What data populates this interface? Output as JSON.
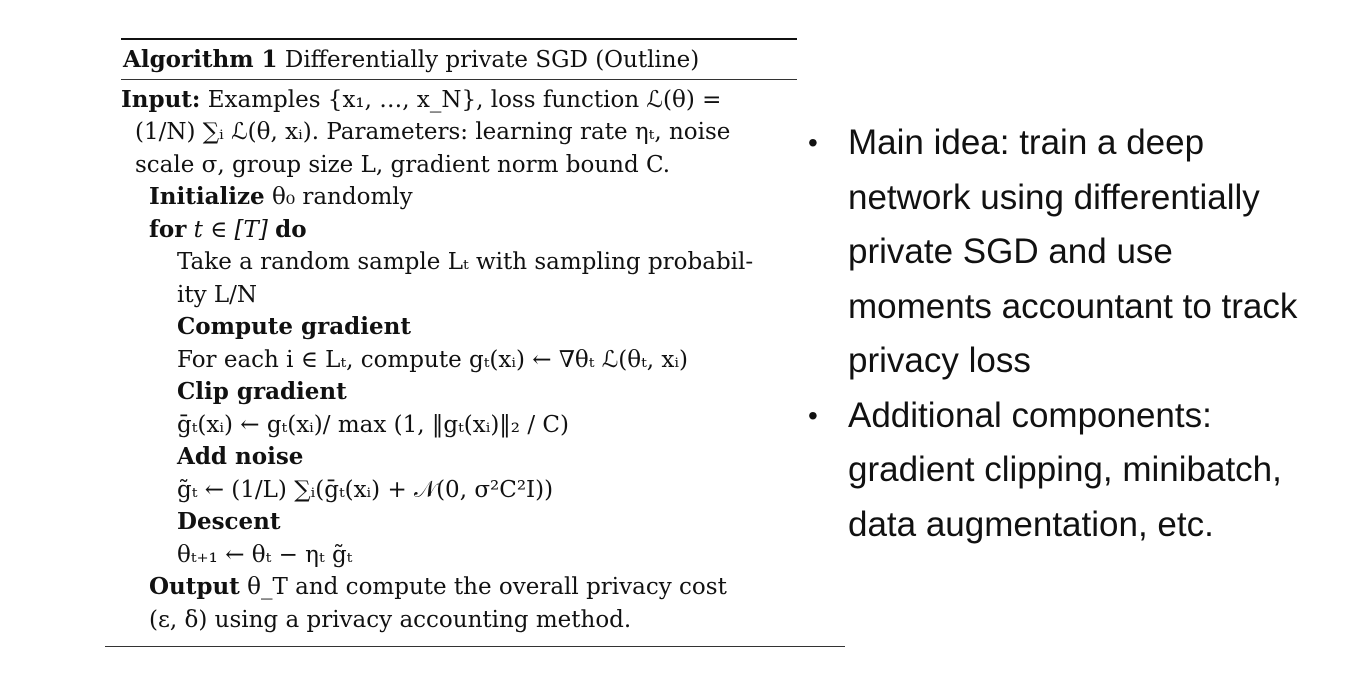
{
  "algorithm": {
    "label": "Algorithm 1",
    "title": "Differentially private SGD (Outline)",
    "lines": [
      {
        "kind": "input",
        "label": "Input:",
        "text": "Examples {x₁, …, x_N}, loss function ℒ(θ) ="
      },
      {
        "kind": "plain",
        "text": "(1/N) ∑ᵢ ℒ(θ, xᵢ).   Parameters:  learning rate ηₜ,  noise"
      },
      {
        "kind": "plain",
        "text": "scale σ, group size L, gradient norm bound C."
      },
      {
        "kind": "bold-lead",
        "label": "Initialize",
        "text": "θ₀ randomly"
      },
      {
        "kind": "for",
        "label": "for",
        "text": "t ∈ [T]",
        "tail": "do"
      },
      {
        "kind": "plain",
        "text": "Take a random sample Lₜ with sampling probabil-"
      },
      {
        "kind": "plain",
        "text": "ity L/N"
      },
      {
        "kind": "heading",
        "text": "Compute gradient"
      },
      {
        "kind": "plain",
        "text": "For each i ∈ Lₜ, compute gₜ(xᵢ) ← ∇θₜ ℒ(θₜ, xᵢ)"
      },
      {
        "kind": "heading",
        "text": "Clip gradient"
      },
      {
        "kind": "plain",
        "text": "ḡₜ(xᵢ) ← gₜ(xᵢ)/ max (1, ‖gₜ(xᵢ)‖₂ / C)"
      },
      {
        "kind": "heading",
        "text": "Add noise"
      },
      {
        "kind": "plain",
        "text": "g̃ₜ ← (1/L) ∑ᵢ(ḡₜ(xᵢ) + 𝒩(0, σ²C²I))"
      },
      {
        "kind": "heading",
        "text": "Descent"
      },
      {
        "kind": "plain",
        "text": "θₜ₊₁ ← θₜ − ηₜ g̃ₜ"
      },
      {
        "kind": "bold-lead",
        "label": "Output",
        "text": "θ_T and compute the overall privacy cost"
      },
      {
        "kind": "plain",
        "text": "(ε, δ) using a privacy accounting method."
      }
    ]
  },
  "bullets": [
    "Main idea: train a deep network using differentially private SGD and use moments accountant to track privacy loss",
    "Additional components: gradient clipping, minibatch, data augmentation, etc."
  ]
}
